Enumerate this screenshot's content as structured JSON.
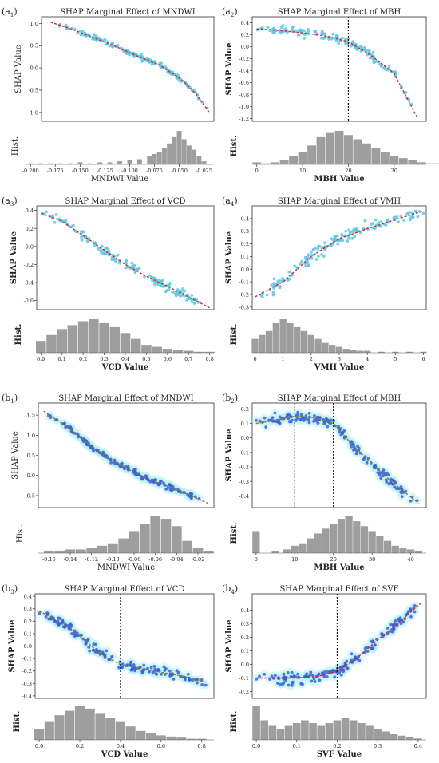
{
  "chart_data": [
    {
      "id": "a1",
      "panel_label_main": "a",
      "panel_label_sub": "1",
      "type": "scatter",
      "title": "SHAP Marginal Effect of MNDWI",
      "xlabel": "MNDWI Value",
      "ylabel": "SHAP Value",
      "hist_label": "Hist.",
      "bold_labels": false,
      "xlim": [
        -0.205,
        -0.015
      ],
      "ylim": [
        -1.2,
        1.15
      ],
      "xticks": [
        -0.2,
        -0.175,
        -0.15,
        -0.125,
        -0.1,
        -0.075,
        -0.05,
        -0.025
      ],
      "xtick_labels": [
        "-0.200",
        "-0.175",
        "-0.150",
        "-0.125",
        "-0.100",
        "-0.075",
        "-0.050",
        "-0.025"
      ],
      "yticks": [
        -1.0,
        -0.5,
        0.0,
        0.5,
        1.0
      ],
      "ytick_labels": [
        "-1.0",
        "-0.5",
        "0.0",
        "0.5",
        "1.0"
      ],
      "point_color": "#5bc8e8",
      "glow": false,
      "trend": [
        [
          -0.195,
          1.03
        ],
        [
          -0.17,
          0.86
        ],
        [
          -0.15,
          0.7
        ],
        [
          -0.125,
          0.5
        ],
        [
          -0.1,
          0.27
        ],
        [
          -0.075,
          0.07
        ],
        [
          -0.05,
          -0.27
        ],
        [
          -0.035,
          -0.58
        ],
        [
          -0.02,
          -1.0
        ]
      ],
      "trend_color": "#d62728",
      "spread": 0.05,
      "vlines": [],
      "hist_centers": [
        -0.2,
        -0.19,
        -0.18,
        -0.17,
        -0.16,
        -0.15,
        -0.14,
        -0.13,
        -0.12,
        -0.11,
        -0.1,
        -0.09,
        -0.08,
        -0.075,
        -0.07,
        -0.065,
        -0.06,
        -0.055,
        -0.05,
        -0.045,
        -0.04,
        -0.035,
        -0.03,
        -0.025
      ],
      "hist_counts": [
        1,
        1,
        1,
        1,
        1,
        2,
        1,
        2,
        2,
        3,
        4,
        5,
        8,
        10,
        12,
        16,
        20,
        26,
        32,
        24,
        18,
        14,
        8,
        3
      ]
    },
    {
      "id": "a2",
      "panel_label_main": "a",
      "panel_label_sub": "2",
      "type": "scatter",
      "title": "SHAP Marginal Effect of MBH",
      "xlabel": "MBH Value",
      "ylabel": "SHAP Value",
      "hist_label": "Hist.",
      "bold_labels": true,
      "xlim": [
        -1,
        37
      ],
      "ylim": [
        -1.25,
        0.5
      ],
      "xticks": [
        0,
        10,
        20,
        30
      ],
      "xtick_labels": [
        "0",
        "10",
        "20",
        "30"
      ],
      "yticks": [
        -1.2,
        -1.0,
        -0.8,
        -0.6,
        -0.4,
        -0.2,
        0.0,
        0.2,
        0.4
      ],
      "ytick_labels": [
        "-1.2",
        "-1.0",
        "-0.8",
        "-0.6",
        "-0.4",
        "-0.2",
        "0.0",
        "0.2",
        "0.4"
      ],
      "point_color": "#5bc8e8",
      "glow": false,
      "trend": [
        [
          0,
          0.3
        ],
        [
          5,
          0.27
        ],
        [
          10,
          0.23
        ],
        [
          15,
          0.18
        ],
        [
          20,
          0.08
        ],
        [
          25,
          -0.15
        ],
        [
          30,
          -0.45
        ],
        [
          35,
          -1.18
        ]
      ],
      "trend_color": "#d62728",
      "spread": 0.07,
      "vlines": [
        20
      ],
      "hist_centers": [
        0,
        2,
        4,
        6,
        8,
        10,
        12,
        14,
        16,
        18,
        20,
        22,
        24,
        26,
        28,
        30,
        32,
        34,
        36,
        38,
        40
      ],
      "hist_counts": [
        2,
        1,
        2,
        4,
        8,
        12,
        18,
        26,
        30,
        32,
        28,
        24,
        20,
        16,
        12,
        8,
        6,
        4,
        2,
        1,
        1
      ]
    },
    {
      "id": "a3",
      "panel_label_main": "a",
      "panel_label_sub": "3",
      "type": "scatter",
      "title": "SHAP Marginal Effect of VCD",
      "xlabel": "VCD Value",
      "ylabel": "SHAP Value",
      "hist_label": "Hist.",
      "bold_labels": true,
      "xlim": [
        -0.02,
        0.82
      ],
      "ylim": [
        -0.7,
        0.45
      ],
      "xticks": [
        0.0,
        0.1,
        0.2,
        0.3,
        0.4,
        0.5,
        0.6,
        0.7,
        0.8
      ],
      "xtick_labels": [
        "0.0",
        "0.1",
        "0.2",
        "0.3",
        "0.4",
        "0.5",
        "0.6",
        "0.7",
        "0.8"
      ],
      "yticks": [
        -0.6,
        -0.4,
        -0.2,
        0.0,
        0.2,
        0.4
      ],
      "ytick_labels": [
        "-0.6",
        "-0.4",
        "-0.2",
        "0.0",
        "0.2",
        "0.4"
      ],
      "point_color": "#5bc8e8",
      "glow": false,
      "trend": [
        [
          0.0,
          0.37
        ],
        [
          0.1,
          0.28
        ],
        [
          0.2,
          0.12
        ],
        [
          0.3,
          -0.04
        ],
        [
          0.4,
          -0.2
        ],
        [
          0.5,
          -0.33
        ],
        [
          0.6,
          -0.44
        ],
        [
          0.7,
          -0.56
        ],
        [
          0.8,
          -0.68
        ]
      ],
      "trend_color": "#d62728",
      "spread": 0.05,
      "vlines": [],
      "hist_centers": [
        0.0,
        0.05,
        0.1,
        0.15,
        0.2,
        0.25,
        0.3,
        0.35,
        0.4,
        0.45,
        0.5,
        0.55,
        0.6,
        0.65,
        0.7,
        0.75,
        0.8
      ],
      "hist_counts": [
        12,
        18,
        24,
        28,
        32,
        34,
        30,
        26,
        20,
        14,
        8,
        6,
        4,
        3,
        2,
        1,
        1
      ]
    },
    {
      "id": "a4",
      "panel_label_main": "a",
      "panel_label_sub": "4",
      "type": "scatter",
      "title": "SHAP Marginal Effect of VMH",
      "xlabel": "VMH Value",
      "ylabel": "SHAP Value",
      "hist_label": "Hist.",
      "bold_labels": true,
      "xlim": [
        -0.1,
        6.1
      ],
      "ylim": [
        -0.32,
        0.5
      ],
      "xticks": [
        0,
        1,
        2,
        3,
        4,
        5,
        6
      ],
      "xtick_labels": [
        "0",
        "1",
        "2",
        "3",
        "4",
        "5",
        "6"
      ],
      "yticks": [
        -0.3,
        -0.2,
        -0.1,
        0.0,
        0.1,
        0.2,
        0.3,
        0.4
      ],
      "ytick_labels": [
        "-0.3",
        "-0.2",
        "-0.1",
        "0.0",
        "0.1",
        "0.2",
        "0.3",
        "0.4"
      ],
      "point_color": "#5bc8e8",
      "glow": false,
      "trend": [
        [
          0,
          -0.22
        ],
        [
          1,
          -0.1
        ],
        [
          2,
          0.1
        ],
        [
          3,
          0.24
        ],
        [
          4,
          0.32
        ],
        [
          5,
          0.39
        ],
        [
          6,
          0.46
        ]
      ],
      "trend_color": "#d62728",
      "spread": 0.05,
      "vlines": [],
      "hist_centers": [
        0.0,
        0.25,
        0.5,
        0.75,
        1.0,
        1.25,
        1.5,
        1.75,
        2.0,
        2.25,
        2.5,
        2.75,
        3.0,
        3.25,
        3.5,
        3.75,
        4.0,
        4.5,
        5.0,
        5.5,
        6.0
      ],
      "hist_counts": [
        14,
        18,
        22,
        30,
        34,
        30,
        26,
        22,
        18,
        14,
        10,
        8,
        6,
        4,
        3,
        2,
        2,
        1,
        1,
        1,
        1
      ]
    },
    {
      "id": "b1",
      "panel_label_main": "b",
      "panel_label_sub": "1",
      "type": "scatter",
      "title": "SHAP Marginal Effect of MNDWI",
      "xlabel": "MNDWI Value",
      "ylabel": "SHAP Value",
      "hist_label": "Hist.",
      "bold_labels": false,
      "xlim": [
        -0.17,
        -0.005
      ],
      "ylim": [
        -0.8,
        1.8
      ],
      "xticks": [
        -0.16,
        -0.14,
        -0.12,
        -0.1,
        -0.08,
        -0.06,
        -0.04,
        -0.02
      ],
      "xtick_labels": [
        "-0.16",
        "-0.14",
        "-0.12",
        "-0.10",
        "-0.08",
        "-0.06",
        "-0.04",
        "-0.02"
      ],
      "yticks": [
        -0.5,
        0.0,
        0.5,
        1.0,
        1.5
      ],
      "ytick_labels": [
        "-0.5",
        "0.0",
        "0.5",
        "1.0",
        "1.5"
      ],
      "point_color": "#3b5fd9",
      "glow": true,
      "trend": [
        [
          -0.165,
          1.6
        ],
        [
          -0.14,
          1.15
        ],
        [
          -0.12,
          0.72
        ],
        [
          -0.1,
          0.35
        ],
        [
          -0.08,
          0.08
        ],
        [
          -0.06,
          -0.15
        ],
        [
          -0.04,
          -0.35
        ],
        [
          -0.01,
          -0.7
        ]
      ],
      "trend_color": "#8a7a2a",
      "spread": 0.07,
      "vlines": [],
      "hist_centers": [
        -0.16,
        -0.15,
        -0.14,
        -0.13,
        -0.12,
        -0.11,
        -0.1,
        -0.09,
        -0.08,
        -0.07,
        -0.06,
        -0.05,
        -0.04,
        -0.03,
        -0.02,
        -0.01
      ],
      "hist_counts": [
        2,
        2,
        3,
        3,
        4,
        6,
        8,
        12,
        18,
        24,
        30,
        28,
        22,
        10,
        4,
        2
      ]
    },
    {
      "id": "b2",
      "panel_label_main": "b",
      "panel_label_sub": "2",
      "type": "scatter",
      "title": "SHAP Marginal Effect of MBH",
      "xlabel": "MBH Value",
      "ylabel": "SHAP Value",
      "hist_label": "Hist.",
      "bold_labels": true,
      "xlim": [
        -1,
        44
      ],
      "ylim": [
        -0.48,
        0.24
      ],
      "xticks": [
        0,
        10,
        20,
        30,
        40
      ],
      "xtick_labels": [
        "0",
        "10",
        "20",
        "30",
        "40"
      ],
      "yticks": [
        -0.4,
        -0.3,
        -0.2,
        -0.1,
        0.0,
        0.1,
        0.2
      ],
      "ytick_labels": [
        "-0.4",
        "-0.3",
        "-0.2",
        "-0.1",
        "0.0",
        "0.1",
        "0.2"
      ],
      "point_color": "#3b5fd9",
      "glow": true,
      "trend": [
        [
          0,
          0.1
        ],
        [
          5,
          0.12
        ],
        [
          10,
          0.15
        ],
        [
          15,
          0.14
        ],
        [
          20,
          0.1
        ],
        [
          25,
          -0.05
        ],
        [
          30,
          -0.18
        ],
        [
          35,
          -0.3
        ],
        [
          42,
          -0.45
        ]
      ],
      "trend_color": "#8a7a2a",
      "spread": 0.04,
      "vlines": [
        10,
        20
      ],
      "hist_centers": [
        0,
        5,
        8,
        10,
        12,
        14,
        16,
        18,
        20,
        22,
        24,
        26,
        28,
        30,
        32,
        34,
        36,
        38,
        40,
        42
      ],
      "hist_counts": [
        18,
        2,
        3,
        6,
        8,
        12,
        16,
        20,
        24,
        28,
        30,
        26,
        22,
        18,
        14,
        10,
        6,
        4,
        3,
        2
      ]
    },
    {
      "id": "b3",
      "panel_label_main": "b",
      "panel_label_sub": "3",
      "type": "scatter",
      "title": "SHAP Marginal Effect of VCD",
      "xlabel": "VCD Value",
      "ylabel": "SHAP Value",
      "hist_label": "Hist.",
      "bold_labels": true,
      "xlim": [
        -0.02,
        0.86
      ],
      "ylim": [
        -0.42,
        0.42
      ],
      "xticks": [
        0.0,
        0.2,
        0.4,
        0.6,
        0.8
      ],
      "xtick_labels": [
        "0.0",
        "0.2",
        "0.4",
        "0.6",
        "0.8"
      ],
      "yticks": [
        -0.4,
        -0.3,
        -0.2,
        -0.1,
        0.0,
        0.1,
        0.2,
        0.3,
        0.4
      ],
      "ytick_labels": [
        "-0.4",
        "-0.3",
        "-0.2",
        "-0.1",
        "0.0",
        "0.1",
        "0.2",
        "0.3",
        "0.4"
      ],
      "point_color": "#3b5fd9",
      "glow": true,
      "trend": [
        [
          0.0,
          0.28
        ],
        [
          0.1,
          0.2
        ],
        [
          0.2,
          0.08
        ],
        [
          0.3,
          -0.06
        ],
        [
          0.4,
          -0.15
        ],
        [
          0.5,
          -0.18
        ],
        [
          0.6,
          -0.21
        ],
        [
          0.7,
          -0.24
        ],
        [
          0.82,
          -0.29
        ]
      ],
      "trend_color": "#8a7a2a",
      "spread": 0.04,
      "vlines": [
        0.4
      ],
      "hist_centers": [
        0.0,
        0.05,
        0.1,
        0.15,
        0.2,
        0.25,
        0.3,
        0.35,
        0.4,
        0.45,
        0.5,
        0.55,
        0.6,
        0.65,
        0.7,
        0.75,
        0.8
      ],
      "hist_counts": [
        10,
        16,
        22,
        26,
        30,
        28,
        24,
        20,
        16,
        12,
        8,
        6,
        4,
        3,
        2,
        1,
        1
      ]
    },
    {
      "id": "b4",
      "panel_label_main": "b",
      "panel_label_sub": "4",
      "type": "scatter",
      "title": "SHAP Marginal Effect of SVF",
      "xlabel": "SVF Value",
      "ylabel": "SHAP Value",
      "hist_label": "Hist.",
      "bold_labels": true,
      "xlim": [
        -0.01,
        0.42
      ],
      "ylim": [
        -0.25,
        0.52
      ],
      "xticks": [
        0.0,
        0.1,
        0.2,
        0.3,
        0.4
      ],
      "xtick_labels": [
        "0.0",
        "0.1",
        "0.2",
        "0.3",
        "0.4"
      ],
      "yticks": [
        -0.2,
        -0.1,
        0.0,
        0.1,
        0.2,
        0.3,
        0.4
      ],
      "ytick_labels": [
        "-0.2",
        "-0.1",
        "0.0",
        "0.1",
        "0.2",
        "0.3",
        "0.4"
      ],
      "point_color": "#3b5fd9",
      "glow": true,
      "trend": [
        [
          0.0,
          -0.1
        ],
        [
          0.1,
          -0.1
        ],
        [
          0.15,
          -0.09
        ],
        [
          0.2,
          -0.05
        ],
        [
          0.25,
          0.05
        ],
        [
          0.3,
          0.18
        ],
        [
          0.35,
          0.3
        ],
        [
          0.41,
          0.46
        ]
      ],
      "trend_color": "#d62728",
      "spread": 0.04,
      "vlines": [
        0.2
      ],
      "hist_centers": [
        0.0,
        0.02,
        0.04,
        0.06,
        0.08,
        0.1,
        0.12,
        0.14,
        0.16,
        0.18,
        0.2,
        0.22,
        0.24,
        0.26,
        0.28,
        0.3,
        0.32,
        0.34,
        0.36,
        0.38,
        0.4
      ],
      "hist_counts": [
        24,
        14,
        10,
        8,
        10,
        12,
        14,
        12,
        10,
        12,
        14,
        16,
        14,
        12,
        10,
        8,
        6,
        4,
        3,
        2,
        1
      ]
    }
  ]
}
